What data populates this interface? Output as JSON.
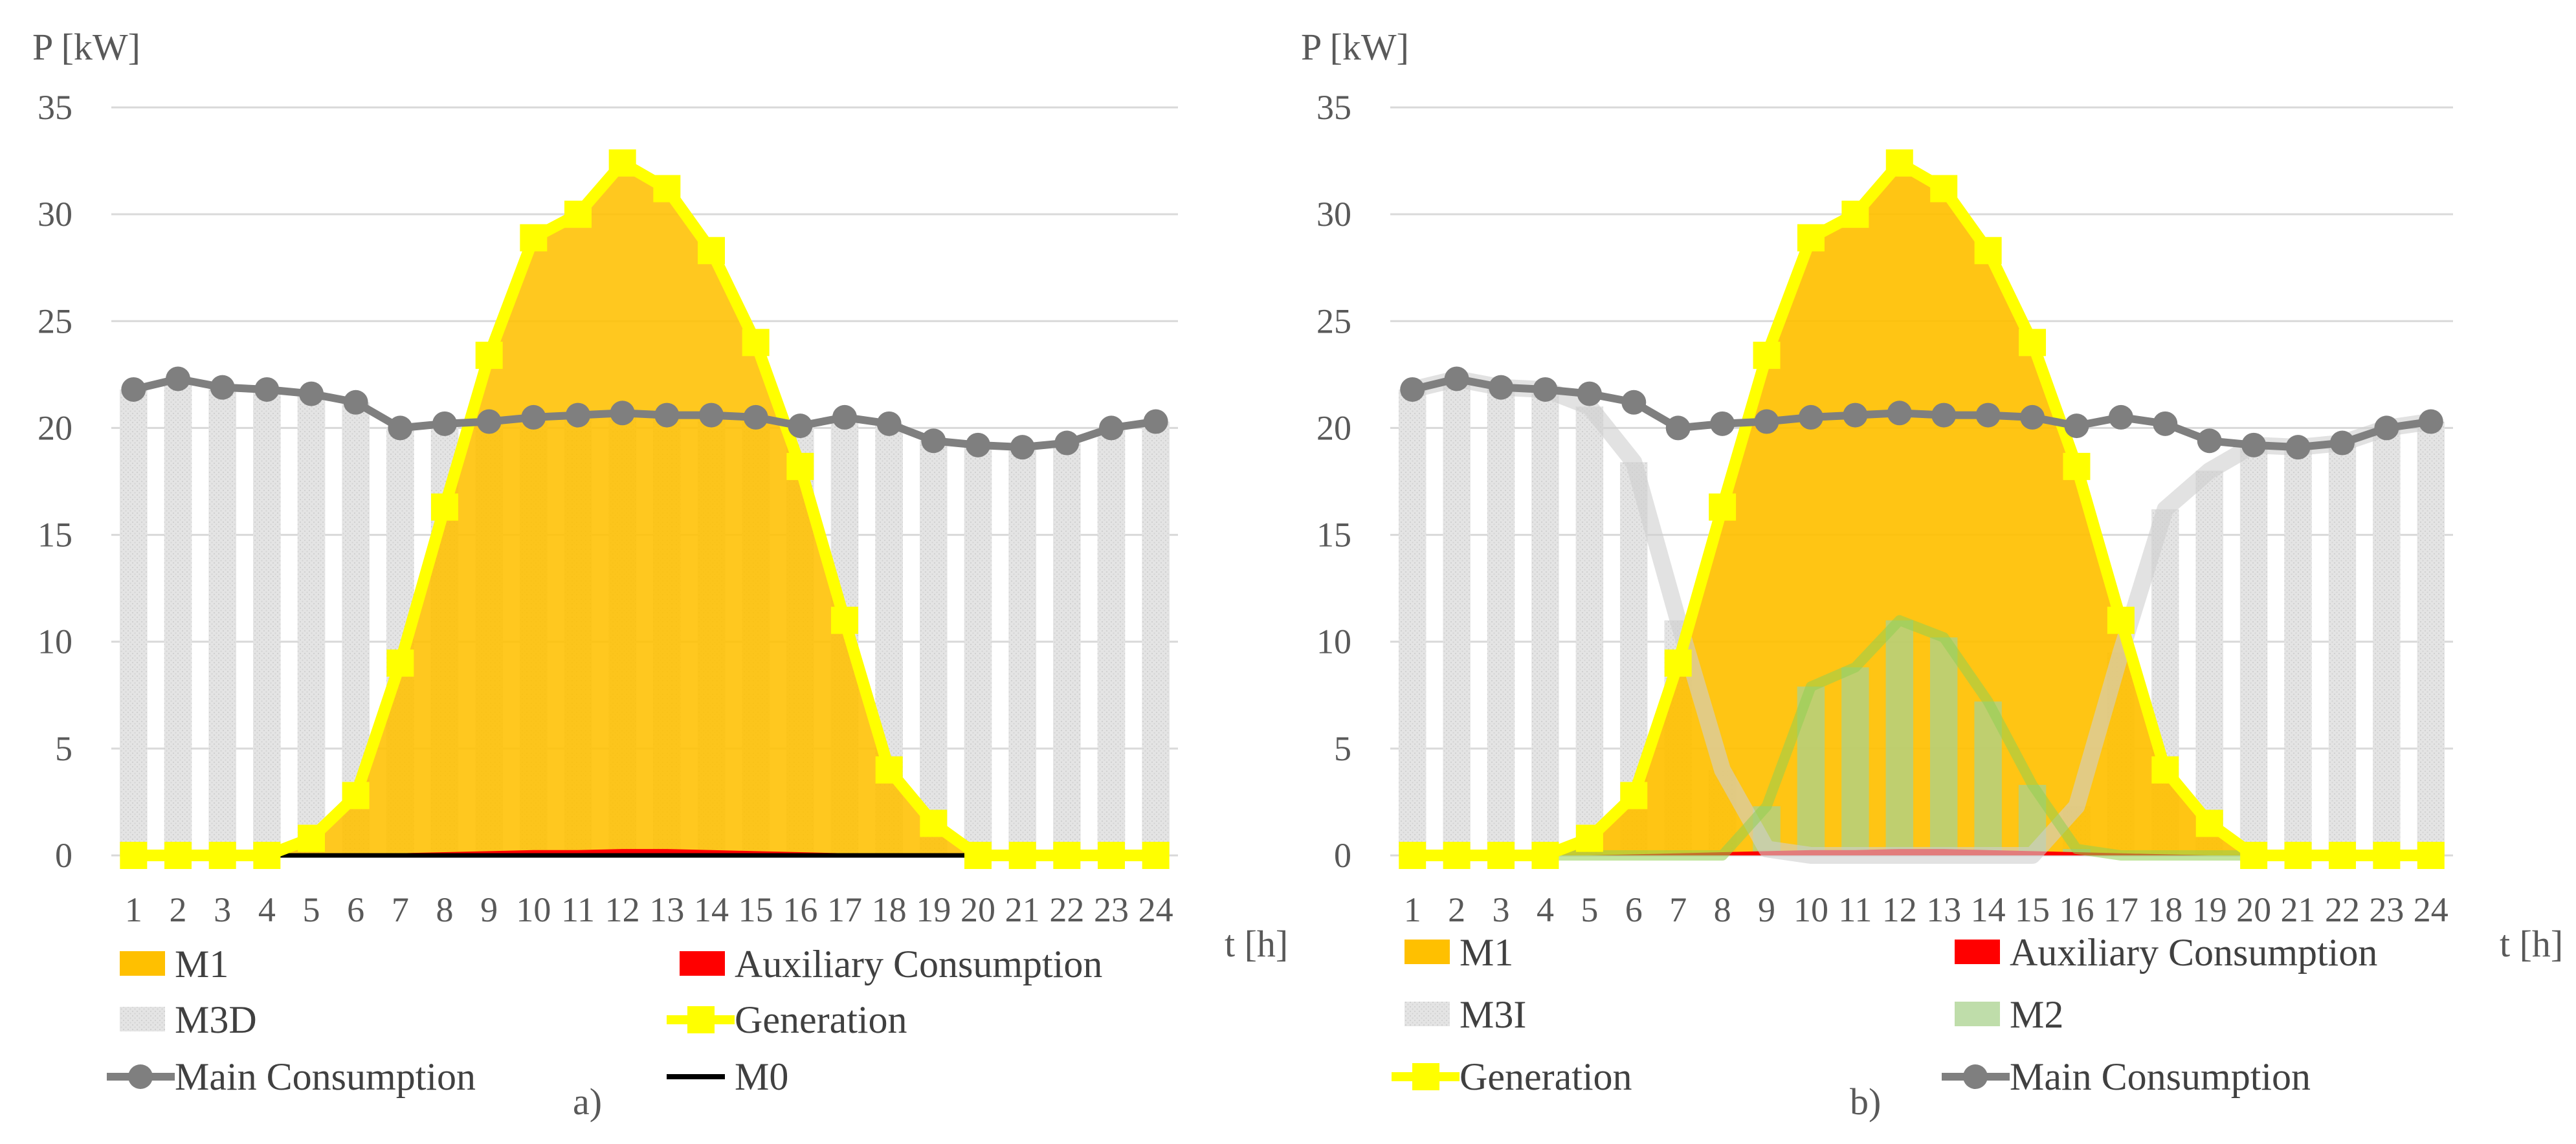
{
  "chart_data": [
    {
      "type": "bar",
      "panel_label": "a)",
      "ylabel": "P [kW]",
      "xlabel": "t [h]",
      "ylim": [
        0,
        35
      ],
      "y_ticks": [
        "0",
        "5",
        "10",
        "15",
        "20",
        "25",
        "30",
        "35"
      ],
      "categories": [
        "1",
        "2",
        "3",
        "4",
        "5",
        "6",
        "7",
        "8",
        "9",
        "10",
        "11",
        "12",
        "13",
        "14",
        "15",
        "16",
        "17",
        "18",
        "19",
        "20",
        "21",
        "22",
        "23",
        "24"
      ],
      "grid": true,
      "series": [
        {
          "name": "M3D",
          "kind": "bar",
          "color": "#d9d9d9",
          "values": [
            21.8,
            22.3,
            21.9,
            21.8,
            21.6,
            21.2,
            20.0,
            20.2,
            20.3,
            20.5,
            20.6,
            20.7,
            20.6,
            20.6,
            20.5,
            20.1,
            20.5,
            20.2,
            19.4,
            19.2,
            19.1,
            19.3,
            20.0,
            20.3
          ]
        },
        {
          "name": "M1",
          "kind": "area",
          "color": "#ffc000",
          "values": [
            0,
            0,
            0,
            0,
            0.8,
            2.8,
            9.0,
            16.3,
            23.4,
            28.9,
            30.0,
            32.4,
            31.2,
            28.3,
            24.0,
            18.2,
            11.0,
            4.0,
            1.5,
            0,
            0,
            0,
            0,
            0
          ]
        },
        {
          "name": "Auxiliary Consumption",
          "kind": "area",
          "color": "#ff0000",
          "values": [
            0,
            0,
            0,
            0,
            0,
            0.05,
            0.1,
            0.15,
            0.2,
            0.25,
            0.25,
            0.3,
            0.3,
            0.25,
            0.2,
            0.15,
            0.1,
            0.05,
            0,
            0,
            0,
            0,
            0,
            0
          ]
        },
        {
          "name": "Generation",
          "kind": "line-square",
          "color": "#ffff00",
          "values": [
            0,
            0,
            0,
            0,
            0.8,
            2.8,
            9.0,
            16.3,
            23.4,
            28.9,
            30.0,
            32.4,
            31.2,
            28.3,
            24.0,
            18.2,
            11.0,
            4.0,
            1.5,
            0,
            0,
            0,
            0,
            0
          ]
        },
        {
          "name": "Main Consumption",
          "kind": "line-circle",
          "color": "#7f7f7f",
          "values": [
            21.8,
            22.3,
            21.9,
            21.8,
            21.6,
            21.2,
            20.0,
            20.2,
            20.3,
            20.5,
            20.6,
            20.7,
            20.6,
            20.6,
            20.5,
            20.1,
            20.5,
            20.2,
            19.4,
            19.2,
            19.1,
            19.3,
            20.0,
            20.3
          ]
        },
        {
          "name": "M0",
          "kind": "line",
          "color": "#000000",
          "values": [
            0,
            0,
            0,
            0,
            0,
            0,
            0,
            0,
            0,
            0,
            0,
            0,
            0,
            0,
            0,
            0,
            0,
            0,
            0,
            0,
            0,
            0,
            0,
            0
          ]
        }
      ],
      "legend": [
        {
          "name": "M1",
          "symbol": "box",
          "color": "#ffc000"
        },
        {
          "name": "Auxiliary Consumption",
          "symbol": "box",
          "color": "#ff0000"
        },
        {
          "name": "M3D",
          "symbol": "box",
          "color": "#d9d9d9"
        },
        {
          "name": "Generation",
          "symbol": "line-square",
          "color": "#ffff00"
        },
        {
          "name": "Main Consumption",
          "symbol": "line-circle",
          "color": "#7f7f7f"
        },
        {
          "name": "M0",
          "symbol": "line",
          "color": "#000000"
        }
      ]
    },
    {
      "type": "bar",
      "panel_label": "b)",
      "ylabel": "P [kW]",
      "xlabel": "t [h]",
      "ylim": [
        0,
        35
      ],
      "y_ticks": [
        "0",
        "5",
        "10",
        "15",
        "20",
        "25",
        "30",
        "35"
      ],
      "categories": [
        "1",
        "2",
        "3",
        "4",
        "5",
        "6",
        "7",
        "8",
        "9",
        "10",
        "11",
        "12",
        "13",
        "14",
        "15",
        "16",
        "17",
        "18",
        "19",
        "20",
        "21",
        "22",
        "23",
        "24"
      ],
      "grid": true,
      "series": [
        {
          "name": "M3I",
          "kind": "bar",
          "color": "#d9d9d9",
          "values": [
            21.8,
            22.3,
            21.9,
            21.8,
            21.0,
            18.4,
            11.0,
            4.0,
            0.3,
            0,
            0,
            0,
            0,
            0,
            0,
            2.3,
            9.5,
            16.2,
            18.0,
            19.2,
            19.1,
            19.3,
            20.0,
            20.3
          ]
        },
        {
          "name": "M1",
          "kind": "area",
          "color": "#ffc000",
          "values": [
            0,
            0,
            0,
            0,
            0.8,
            2.8,
            9.0,
            16.3,
            23.4,
            28.9,
            30.0,
            32.4,
            31.2,
            28.3,
            24.0,
            18.2,
            11.0,
            4.0,
            1.5,
            0,
            0,
            0,
            0,
            0
          ]
        },
        {
          "name": "M2",
          "kind": "bar",
          "color": "#a9d18e",
          "values": [
            0,
            0,
            0,
            0,
            0,
            0,
            0,
            0,
            2.3,
            7.9,
            8.8,
            11.0,
            10.2,
            7.2,
            3.3,
            0.3,
            0,
            0,
            0,
            0,
            0,
            0,
            0,
            0
          ]
        },
        {
          "name": "Auxiliary Consumption",
          "kind": "area",
          "color": "#ff0000",
          "values": [
            0,
            0,
            0,
            0,
            0,
            0.05,
            0.1,
            0.15,
            0.2,
            0.25,
            0.25,
            0.3,
            0.3,
            0.25,
            0.2,
            0.15,
            0.1,
            0.05,
            0,
            0,
            0,
            0,
            0,
            0
          ]
        },
        {
          "name": "Generation",
          "kind": "line-square",
          "color": "#ffff00",
          "values": [
            0,
            0,
            0,
            0,
            0.8,
            2.8,
            9.0,
            16.3,
            23.4,
            28.9,
            30.0,
            32.4,
            31.2,
            28.3,
            24.0,
            18.2,
            11.0,
            4.0,
            1.5,
            0,
            0,
            0,
            0,
            0
          ]
        },
        {
          "name": "Main Consumption",
          "kind": "line-circle",
          "color": "#7f7f7f",
          "values": [
            21.8,
            22.3,
            21.9,
            21.8,
            21.6,
            21.2,
            20.0,
            20.2,
            20.3,
            20.5,
            20.6,
            20.7,
            20.6,
            20.6,
            20.5,
            20.1,
            20.5,
            20.2,
            19.4,
            19.2,
            19.1,
            19.3,
            20.0,
            20.3
          ]
        }
      ],
      "legend": [
        {
          "name": "M1",
          "symbol": "box",
          "color": "#ffc000"
        },
        {
          "name": "Auxiliary Consumption",
          "symbol": "box",
          "color": "#ff0000"
        },
        {
          "name": "M3I",
          "symbol": "box",
          "color": "#d9d9d9"
        },
        {
          "name": "M2",
          "symbol": "box",
          "color": "#a9d18e"
        },
        {
          "name": "Generation",
          "symbol": "line-square",
          "color": "#ffff00"
        },
        {
          "name": "Main Consumption",
          "symbol": "line-circle",
          "color": "#7f7f7f"
        }
      ]
    }
  ]
}
